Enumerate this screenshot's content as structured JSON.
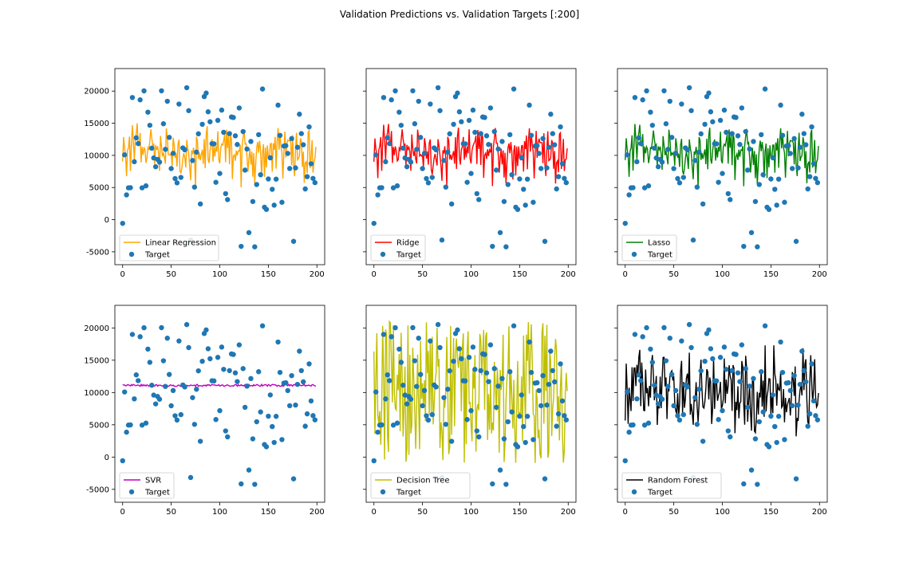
{
  "figure": {
    "suptitle": "Validation Predictions vs. Validation Targets [:200]"
  },
  "chart_data": [
    {
      "type": "line",
      "model": "linear",
      "series": [
        {
          "name": "Linear Regression",
          "color": "#ffa500"
        },
        {
          "name": "Target",
          "color": "#1f77b4",
          "kind": "scatter"
        }
      ],
      "xlim": [
        -8,
        208
      ],
      "ylim": [
        -7000,
        23500
      ],
      "xticks": [
        0,
        50,
        100,
        150,
        200
      ],
      "yticks": [
        -5000,
        0,
        5000,
        10000,
        15000,
        20000
      ],
      "legend": "lower-left"
    },
    {
      "type": "line",
      "model": "ridge",
      "series": [
        {
          "name": "Ridge",
          "color": "#ff0000"
        },
        {
          "name": "Target",
          "color": "#1f77b4",
          "kind": "scatter"
        }
      ],
      "xlim": [
        -8,
        208
      ],
      "ylim": [
        -7000,
        23500
      ],
      "xticks": [
        0,
        50,
        100,
        150,
        200
      ],
      "yticks": [
        -5000,
        0,
        5000,
        10000,
        15000,
        20000
      ],
      "legend": "lower-left"
    },
    {
      "type": "line",
      "model": "lasso",
      "series": [
        {
          "name": "Lasso",
          "color": "#008000"
        },
        {
          "name": "Target",
          "color": "#1f77b4",
          "kind": "scatter"
        }
      ],
      "xlim": [
        -8,
        208
      ],
      "ylim": [
        -7000,
        23500
      ],
      "xticks": [
        0,
        50,
        100,
        150,
        200
      ],
      "yticks": [
        -5000,
        0,
        5000,
        10000,
        15000,
        20000
      ],
      "legend": "lower-left"
    },
    {
      "type": "line",
      "model": "svr",
      "series": [
        {
          "name": "SVR",
          "color": "#bf00bf"
        },
        {
          "name": "Target",
          "color": "#1f77b4",
          "kind": "scatter"
        }
      ],
      "xlim": [
        -8,
        208
      ],
      "ylim": [
        -7000,
        23500
      ],
      "xticks": [
        0,
        50,
        100,
        150,
        200
      ],
      "yticks": [
        -5000,
        0,
        5000,
        10000,
        15000,
        20000
      ],
      "legend": "lower-left"
    },
    {
      "type": "line",
      "model": "tree",
      "series": [
        {
          "name": "Decision Tree",
          "color": "#bfbf00"
        },
        {
          "name": "Target",
          "color": "#1f77b4",
          "kind": "scatter"
        }
      ],
      "xlim": [
        -8,
        208
      ],
      "ylim": [
        -7000,
        23500
      ],
      "xticks": [
        0,
        50,
        100,
        150,
        200
      ],
      "yticks": [
        -5000,
        0,
        5000,
        10000,
        15000,
        20000
      ],
      "legend": "lower-left"
    },
    {
      "type": "line",
      "model": "forest",
      "series": [
        {
          "name": "Random Forest",
          "color": "#000000"
        },
        {
          "name": "Target",
          "color": "#1f77b4",
          "kind": "scatter"
        }
      ],
      "xlim": [
        -8,
        208
      ],
      "ylim": [
        -7000,
        23500
      ],
      "xticks": [
        0,
        50,
        100,
        150,
        200
      ],
      "yticks": [
        -5000,
        0,
        5000,
        10000,
        15000,
        20000
      ],
      "legend": "lower-left"
    }
  ]
}
